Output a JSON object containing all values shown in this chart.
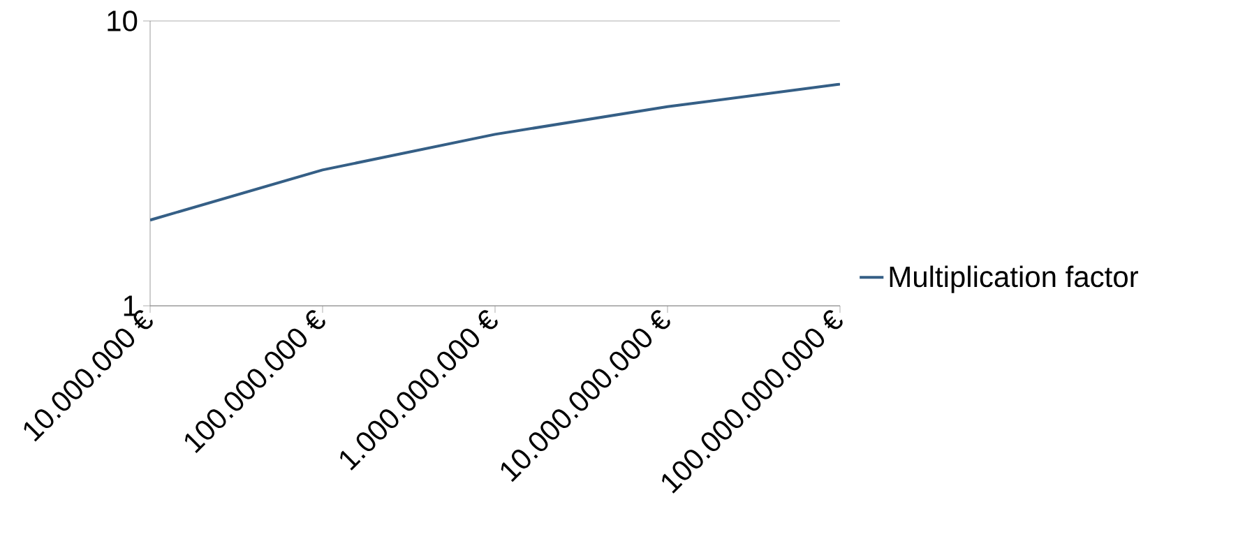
{
  "chart_data": {
    "type": "line",
    "categories": [
      "10.000.000 €",
      "100.000.000 €",
      "1.000.000.000 €",
      "10.000.000.000 €",
      "100.000.000.000 €"
    ],
    "series": [
      {
        "name": "Multiplication factor",
        "color": "#355f86",
        "values": [
          2,
          3,
          4,
          5,
          6
        ]
      }
    ],
    "log": "y",
    "ylim": [
      1,
      10
    ],
    "yticks": [
      1,
      10
    ],
    "grid": "y",
    "legend": "right",
    "marker": "none"
  }
}
